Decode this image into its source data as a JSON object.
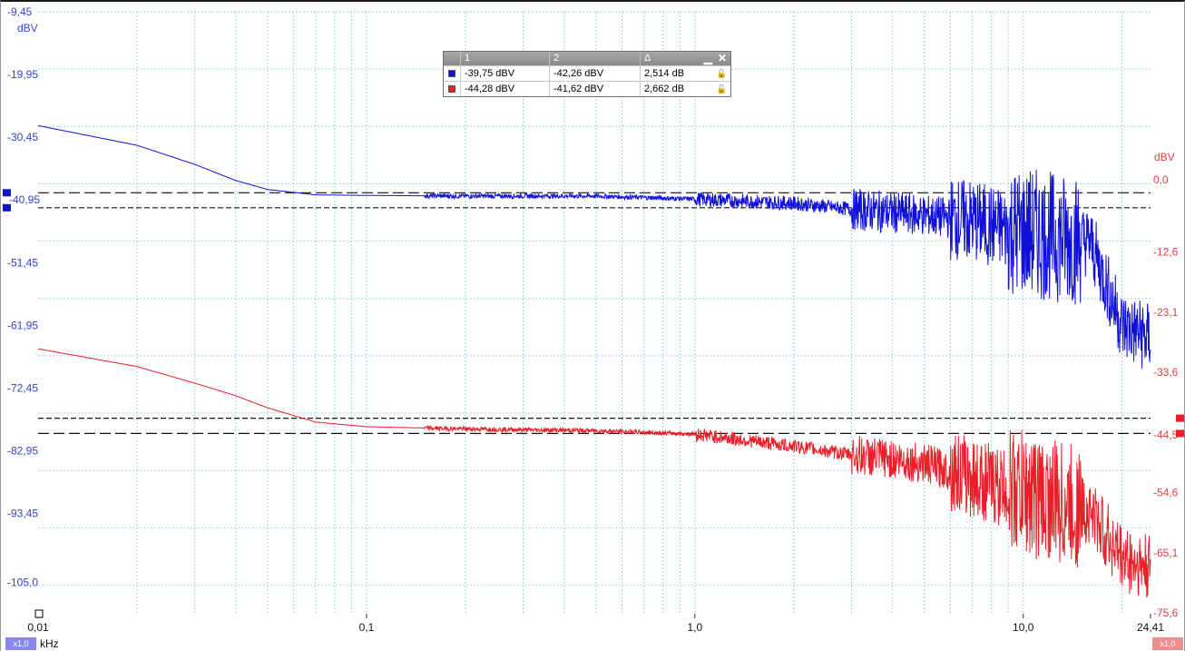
{
  "chart_data": {
    "type": "line",
    "x_unit": "kHz",
    "x_scale": "log",
    "x_range": [
      0.01,
      24.41
    ],
    "x_ticks": [
      "0,01",
      "0,1",
      "1,0",
      "10,0",
      "24,41"
    ],
    "grid": true,
    "left_axis": {
      "unit": "dBV",
      "range": [
        -110.25,
        -9.45
      ],
      "ticks": [
        "-9,45",
        "-19,95",
        "-30,45",
        "-40,95",
        "-51,45",
        "-61,95",
        "-72,45",
        "-82,95",
        "-93,45",
        "-105,0"
      ]
    },
    "right_axis": {
      "unit": "dBV",
      "range": [
        -75.6,
        0.0
      ],
      "ticks": [
        "0,0",
        "-12,6",
        "-23,1",
        "-33,6",
        "-44,5",
        "-54,6",
        "-65,1",
        "-75,6"
      ]
    },
    "series": [
      {
        "axis": "left",
        "color": "#1010d8",
        "x": [
          0.01,
          0.02,
          0.03,
          0.04,
          0.05,
          0.07,
          0.1,
          0.2,
          0.5,
          1.0,
          2.0,
          3.0,
          5.0,
          7.0,
          9.0,
          12.0,
          16.0,
          20.0,
          24.0
        ],
        "y": [
          -28.5,
          -31.8,
          -35.0,
          -37.7,
          -39.2,
          -40.1,
          -40.2,
          -40.3,
          -40.3,
          -40.8,
          -41.5,
          -42.5,
          -43.5,
          -44.5,
          -46.0,
          -47.0,
          -48.0,
          -62.0,
          -64.0
        ]
      },
      {
        "axis": "right",
        "color": "#e8202a",
        "x": [
          0.01,
          0.02,
          0.03,
          0.04,
          0.05,
          0.07,
          0.1,
          0.2,
          0.5,
          1.0,
          2.0,
          3.0,
          5.0,
          7.0,
          9.0,
          12.0,
          16.0,
          20.0,
          24.0
        ],
        "y": [
          -29.5,
          -32.6,
          -35.5,
          -37.7,
          -39.8,
          -42.3,
          -43.1,
          -43.5,
          -43.8,
          -44.4,
          -46.5,
          -48.0,
          -49.5,
          -52.0,
          -54.0,
          -56.0,
          -58.0,
          -66.0,
          -68.0
        ]
      }
    ],
    "cursors_left": [
      -39.75,
      -42.26
    ],
    "cursors_right": [
      -44.28,
      -41.62
    ]
  },
  "cursor_table": {
    "headers": [
      "1",
      "2",
      "Δ"
    ],
    "rows": [
      {
        "color": "#1010d8",
        "c1": "-39,75 dBV",
        "c2": "-42,26 dBV",
        "delta": "2,514 dB"
      },
      {
        "color": "#e8202a",
        "c1": "-44,28 dBV",
        "c2": "-41,62 dBV",
        "delta": "2,662 dB"
      }
    ],
    "minimize_glyph": "▁",
    "close_glyph": "✕",
    "lock_icon": "lock-icon"
  },
  "x_unit_label": "kHz",
  "badges": {
    "left": "x1,0",
    "right": "x1,0"
  }
}
